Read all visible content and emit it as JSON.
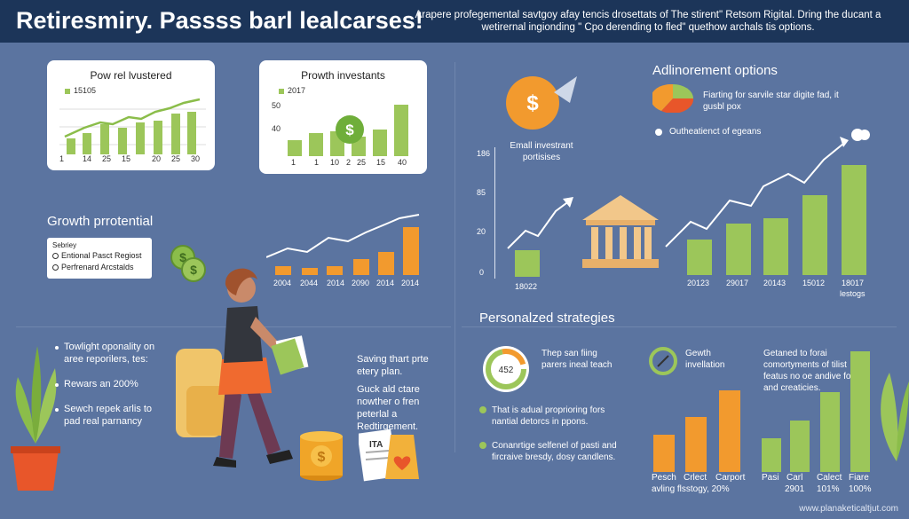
{
  "header": {
    "title": "Retiresmiry. Passss barl lealcarses!",
    "subtitle": "Arapere profegemental savtgoy afay tencis drosettats of The stirent\" Retsom Rigital. Dring the ducant a wetirernal ingionding \" Cpo derending to fled\" quethow archals tis options."
  },
  "card_left": {
    "title": "Pow rel lvustered",
    "legend": "15105",
    "ticks": [
      "1",
      "14",
      "25",
      "15",
      "20",
      "25",
      "30"
    ]
  },
  "card_middle": {
    "title": "Prowth investants",
    "legend": "2017",
    "y_ticks": [
      "50",
      "40"
    ],
    "ticks": [
      "1",
      "1",
      "10",
      "2",
      "25",
      "15",
      "40"
    ]
  },
  "growth": {
    "title": "Growth prrotential",
    "legend_header": "Sebriey",
    "legend_items": [
      "Entional Pasct Regiost",
      "Perfrenard Arcstalds"
    ],
    "ticks": [
      "2004",
      "2044",
      "2014",
      "2090",
      "2014",
      "2014"
    ]
  },
  "left_bottom": {
    "items": [
      "Towlight oponality on aree reporilers, tes:",
      "Rewars an 200%",
      "Sewch repek arlis to pad real parnancy"
    ]
  },
  "middle_text": {
    "text1": "Saving thart prte etery plan.",
    "text2": "Guck ald ctare nowther o fren peterlal a Redtirgement."
  },
  "alloc": {
    "title": "Adlinorement options",
    "desc": "Fiarting for sarvile star digite fad, it gusbl pox",
    "option": "Outheatienct of egeans"
  },
  "small_invest": {
    "label": "Emall investrant portisises",
    "y_ticks": [
      "186",
      "85",
      "20",
      "0"
    ],
    "x_tick": "18022"
  },
  "right_chart": {
    "ticks": [
      "20123",
      "29017",
      "20143",
      "15012",
      "18017"
    ],
    "extra": "lestogs"
  },
  "personalized": {
    "title": "Personalzed strategies",
    "gauge_value": "452",
    "gauge_text": "Thep san fiing parers ineal teach",
    "items": [
      "That is adual proprioring fors nantial detorcs in ppons.",
      "Conanrtige selfenel of pasti and fircraive bresdy, dosy candlens."
    ],
    "growth_label": "Gewth invellation",
    "desc": "Getaned to forai comortyments of tilist featus no oe andive fos and creaticies.",
    "orange_labels": [
      "Pesch",
      "Crlect",
      "Carport"
    ],
    "orange_sub": "avling flsstogy, 20%",
    "green_labels": [
      "Pasi",
      "Carl",
      "Calect",
      "Fiare"
    ],
    "green_values": [
      "2901",
      "101%",
      "100%"
    ]
  },
  "book_label": "ITA",
  "coin_symbol": "$",
  "watermark": "www.planaketicaltjut.com",
  "colors": {
    "background": "#5b74a0",
    "header": "#1c3559",
    "green": "#9cc65a",
    "orange": "#f29a2e",
    "card": "#ffffff"
  }
}
